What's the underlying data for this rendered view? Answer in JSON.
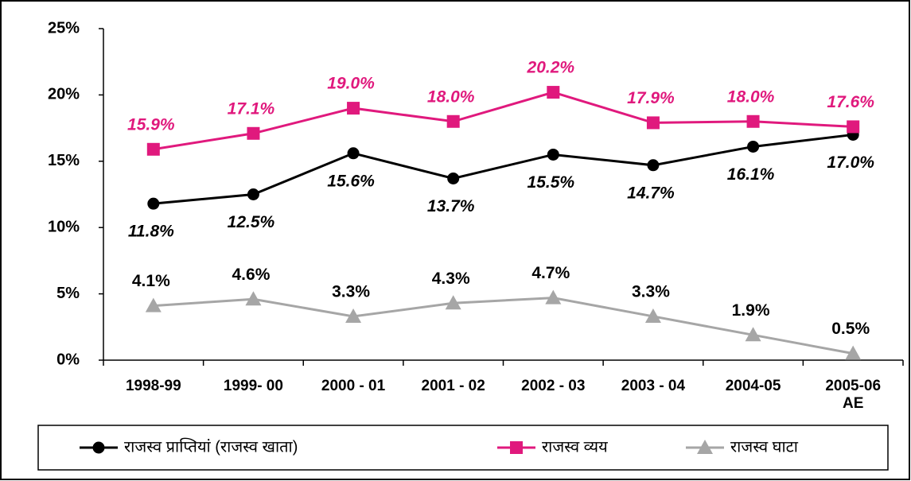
{
  "chart_data": {
    "type": "line",
    "categories": [
      "1998-99",
      "1999- 00",
      "2000 - 01",
      "2001 - 02",
      "2002 - 03",
      "2003 - 04",
      "2004-05",
      "2005-06\nAE"
    ],
    "ylim": [
      0,
      25
    ],
    "yticks": [
      {
        "value": 0,
        "label": "0%"
      },
      {
        "value": 5,
        "label": "5%"
      },
      {
        "value": 10,
        "label": "10%"
      },
      {
        "value": 15,
        "label": "15%"
      },
      {
        "value": 20,
        "label": "20%"
      },
      {
        "value": 25,
        "label": "25%"
      }
    ],
    "legend": "bottom",
    "series": [
      {
        "name": "राजस्व प्राप्तियां (राजस्व खाता)",
        "color": "#000000",
        "marker": "circle",
        "label_position": "below",
        "label_color": "#000000",
        "label_style": "italic",
        "values": [
          11.8,
          12.5,
          15.6,
          13.7,
          15.5,
          14.7,
          16.1,
          17.0
        ],
        "value_labels": [
          "11.8%",
          "12.5%",
          "15.6%",
          "13.7%",
          "15.5%",
          "14.7%",
          "16.1%",
          "17.0%"
        ]
      },
      {
        "name": "राजस्व व्यय",
        "color": "#e0197d",
        "marker": "square",
        "label_position": "above",
        "label_color": "#e0197d",
        "label_style": "italic",
        "values": [
          15.9,
          17.1,
          19.0,
          18.0,
          20.2,
          17.9,
          18.0,
          17.6
        ],
        "value_labels": [
          "15.9%",
          "17.1%",
          "19.0%",
          "18.0%",
          "20.2%",
          "17.9%",
          "18.0%",
          "17.6%"
        ]
      },
      {
        "name": "राजस्व घाटा",
        "color": "#a6a6a6",
        "marker": "triangle",
        "label_position": "above",
        "label_color": "#000000",
        "label_style": "normal",
        "values": [
          4.1,
          4.6,
          3.3,
          4.3,
          4.7,
          3.3,
          1.9,
          0.5
        ],
        "value_labels": [
          "4.1%",
          "4.6%",
          "3.3%",
          "4.3%",
          "4.7%",
          "3.3%",
          "1.9%",
          "0.5%"
        ]
      }
    ]
  }
}
